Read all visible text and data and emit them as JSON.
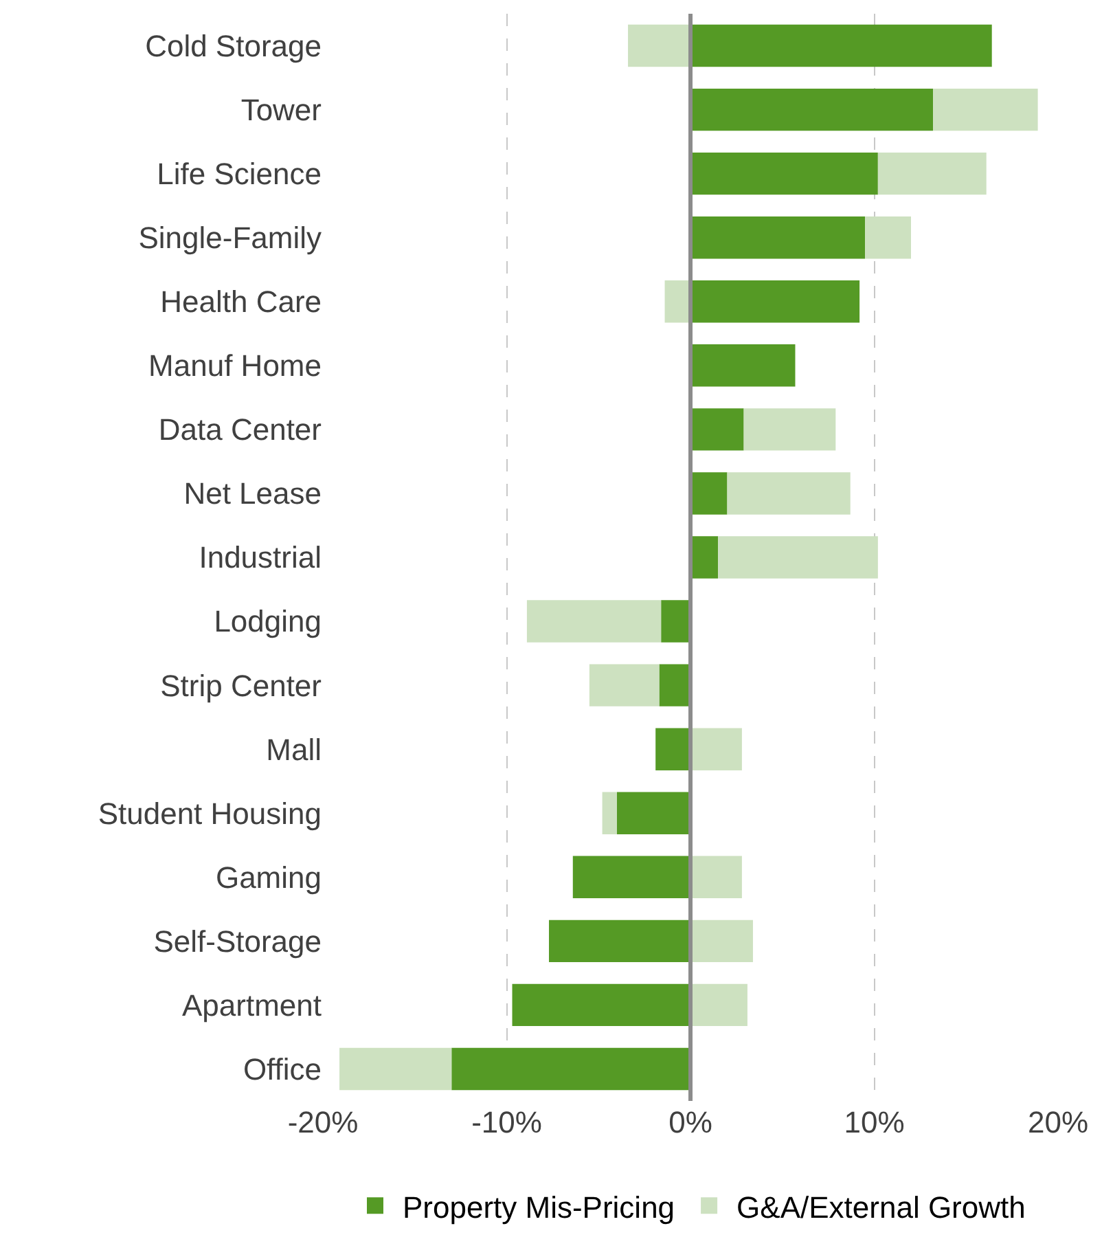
{
  "chart_data": {
    "type": "bar",
    "orientation": "horizontal",
    "stacked": true,
    "categories": [
      "Cold Storage",
      "Tower",
      "Life Science",
      "Single-Family",
      "Health Care",
      "Manuf Home",
      "Data Center",
      "Net Lease",
      "Industrial",
      "Lodging",
      "Strip Center",
      "Mall",
      "Student Housing",
      "Gaming",
      "Self-Storage",
      "Apartment",
      "Office"
    ],
    "series": [
      {
        "name": "Property Mis-Pricing",
        "color": "#559a25",
        "values": [
          16.4,
          13.2,
          10.2,
          9.5,
          9.2,
          5.7,
          2.9,
          2.0,
          1.5,
          -1.6,
          -1.7,
          -1.9,
          -4.0,
          -6.4,
          -7.7,
          -9.7,
          -13.0
        ]
      },
      {
        "name": "G&A/External Growth",
        "color": "#cde1c0",
        "values": [
          -3.4,
          5.7,
          5.9,
          2.5,
          -1.4,
          null,
          5.0,
          6.7,
          8.7,
          -7.3,
          -3.8,
          2.8,
          -0.8,
          2.8,
          3.4,
          3.1,
          -6.1
        ]
      }
    ],
    "xlim": [
      -20,
      20
    ],
    "xticks": [
      {
        "value": -20,
        "label": "-20%"
      },
      {
        "value": -10,
        "label": "-10%"
      },
      {
        "value": 0,
        "label": "0%"
      },
      {
        "value": 10,
        "label": "10%"
      },
      {
        "value": 20,
        "label": "20%"
      }
    ],
    "ref_lines": [
      {
        "axis": "x",
        "value": 0,
        "color": "#8c8c8c",
        "line_style": "solid"
      }
    ],
    "grid": "x",
    "legend": "bottom"
  }
}
